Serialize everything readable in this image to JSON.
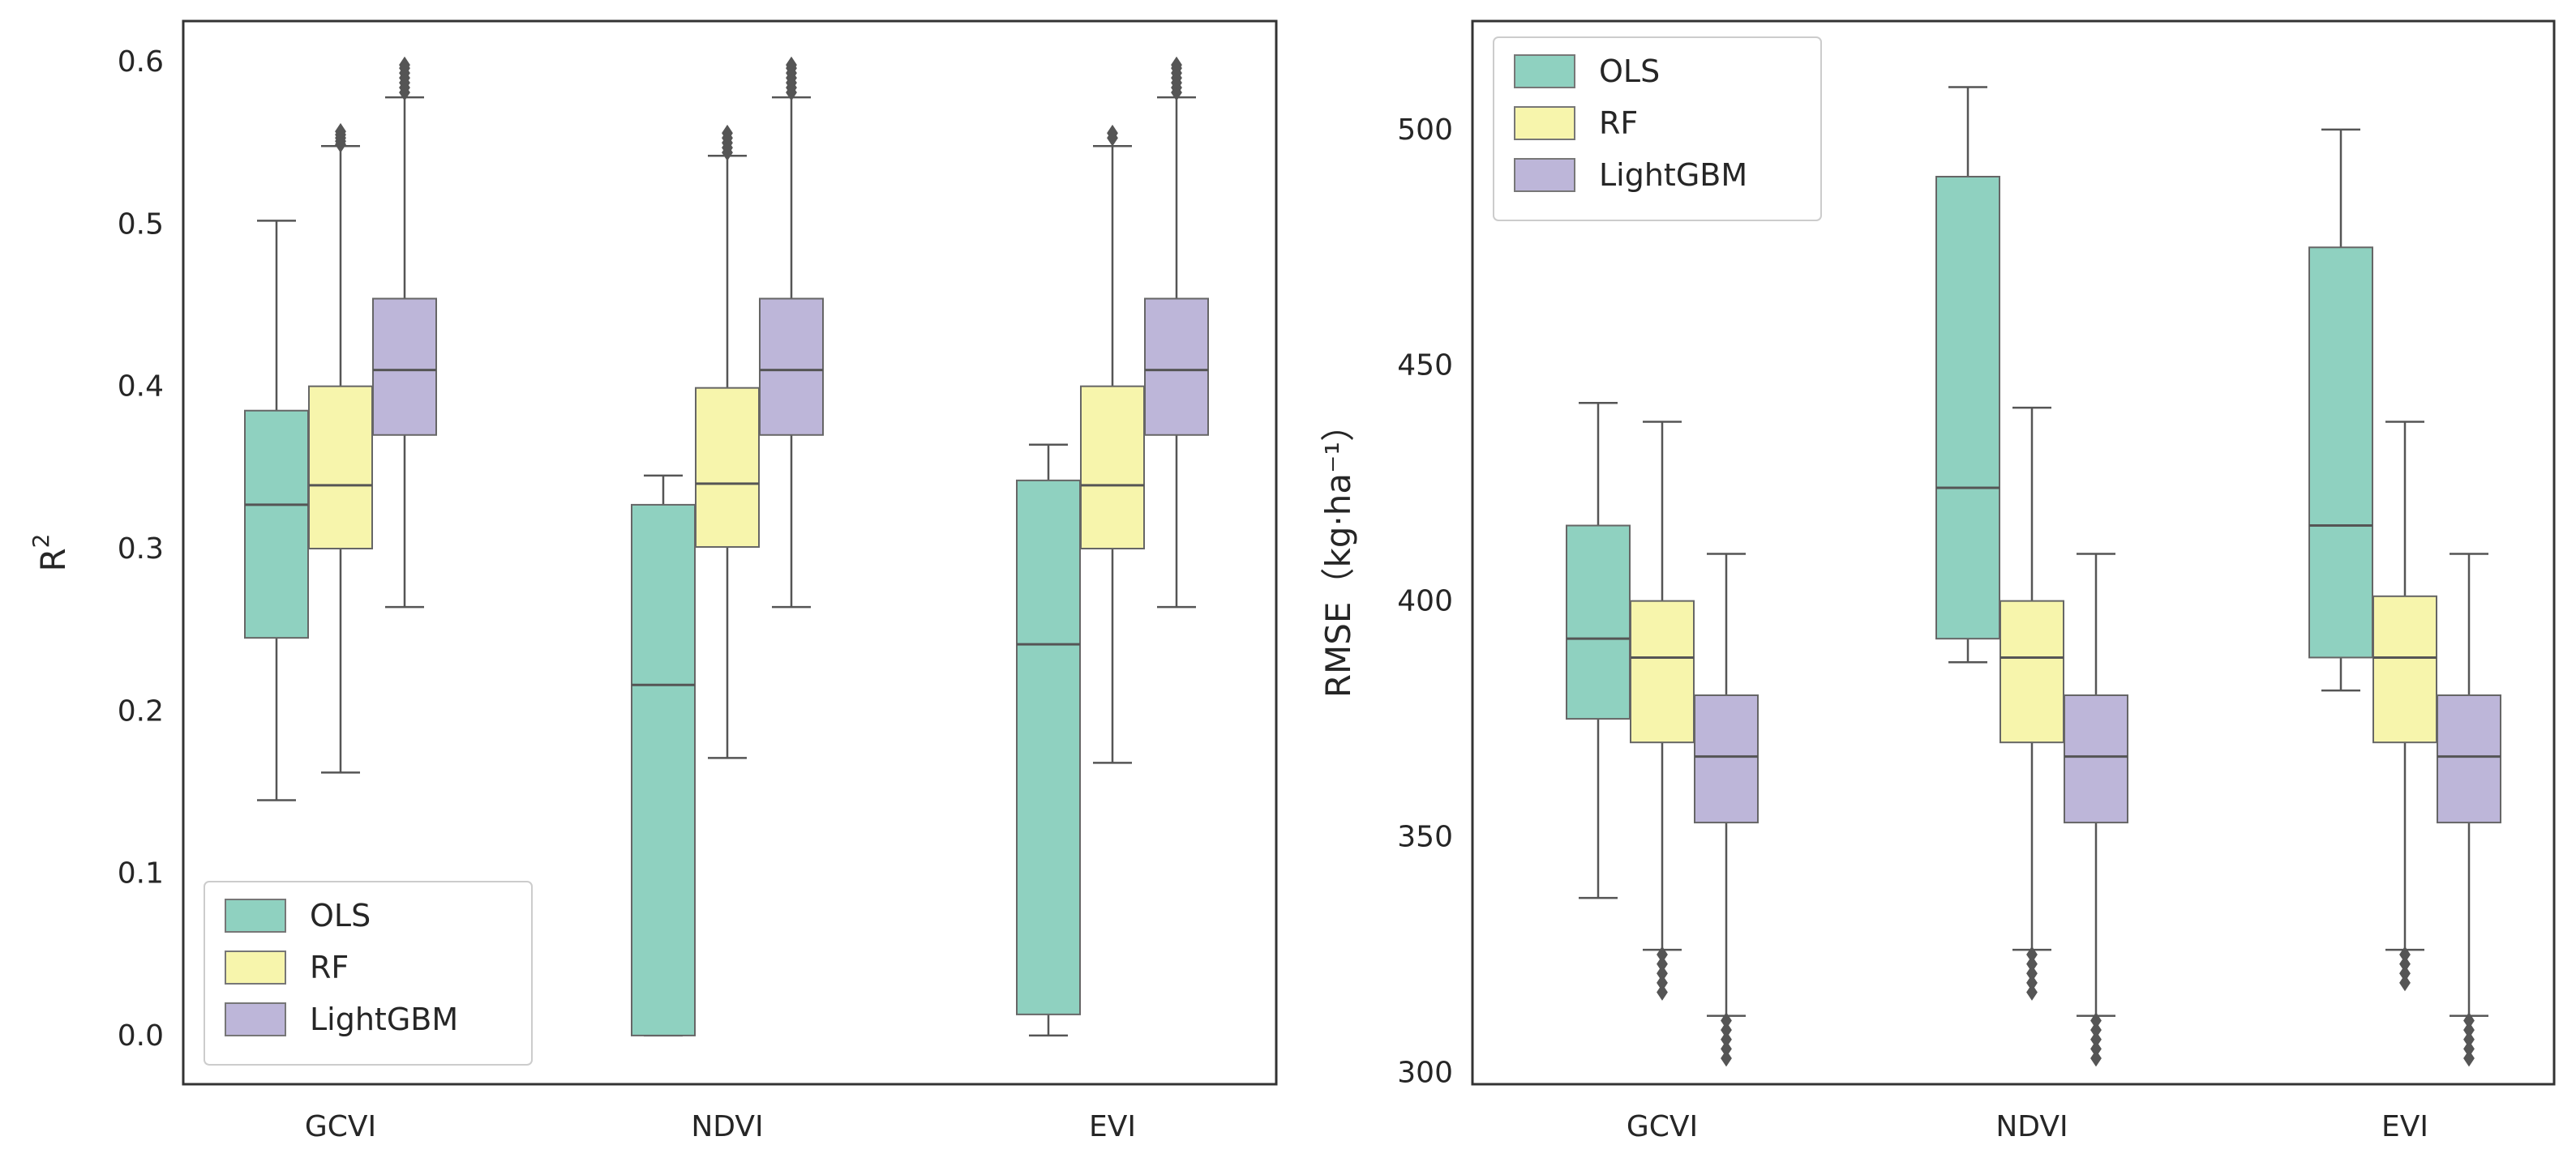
{
  "colors": {
    "OLS": "#8fd1c0",
    "RF": "#f7f5ac",
    "LightGBM": "#bdb6d9"
  },
  "chart_data": [
    {
      "type": "box",
      "title": "",
      "xlabel": "",
      "ylabel": "R",
      "ylabel_sup": "2",
      "categories": [
        "GCVI",
        "NDVI",
        "EVI"
      ],
      "ylim": [
        -0.03,
        0.625
      ],
      "yticks": [
        0.0,
        0.1,
        0.2,
        0.3,
        0.4,
        0.5,
        0.6
      ],
      "ytick_labels": [
        "0.0",
        "0.1",
        "0.2",
        "0.3",
        "0.4",
        "0.5",
        "0.6"
      ],
      "legend_position": "lower-left",
      "series": [
        {
          "name": "OLS",
          "boxes": [
            {
              "whislo": 0.145,
              "q1": 0.245,
              "med": 0.327,
              "q3": 0.385,
              "whishi": 0.502,
              "fliers": []
            },
            {
              "whislo": 0.0,
              "q1": 0.0,
              "med": 0.216,
              "q3": 0.327,
              "whishi": 0.345,
              "fliers": []
            },
            {
              "whislo": 0.0,
              "q1": 0.013,
              "med": 0.241,
              "q3": 0.342,
              "whishi": 0.364,
              "fliers": []
            }
          ]
        },
        {
          "name": "RF",
          "boxes": [
            {
              "whislo": 0.162,
              "q1": 0.3,
              "med": 0.339,
              "q3": 0.4,
              "whishi": 0.548,
              "fliers": [
                0.549,
                0.551,
                0.553,
                0.555,
                0.557
              ]
            },
            {
              "whislo": 0.171,
              "q1": 0.301,
              "med": 0.34,
              "q3": 0.399,
              "whishi": 0.542,
              "fliers": [
                0.544,
                0.547,
                0.55,
                0.553,
                0.556
              ]
            },
            {
              "whislo": 0.168,
              "q1": 0.3,
              "med": 0.339,
              "q3": 0.4,
              "whishi": 0.548,
              "fliers": [
                0.553,
                0.556
              ]
            }
          ]
        },
        {
          "name": "LightGBM",
          "boxes": [
            {
              "whislo": 0.264,
              "q1": 0.37,
              "med": 0.41,
              "q3": 0.454,
              "whishi": 0.578,
              "fliers": [
                0.581,
                0.584,
                0.587,
                0.59,
                0.593,
                0.596,
                0.598
              ]
            },
            {
              "whislo": 0.264,
              "q1": 0.37,
              "med": 0.41,
              "q3": 0.454,
              "whishi": 0.578,
              "fliers": [
                0.581,
                0.584,
                0.587,
                0.59,
                0.593,
                0.596,
                0.598
              ]
            },
            {
              "whislo": 0.264,
              "q1": 0.37,
              "med": 0.41,
              "q3": 0.454,
              "whishi": 0.578,
              "fliers": [
                0.581,
                0.584,
                0.587,
                0.59,
                0.593,
                0.596,
                0.598
              ]
            }
          ]
        }
      ]
    },
    {
      "type": "box",
      "title": "",
      "xlabel": "",
      "ylabel": "RMSE（kg·ha⁻¹）",
      "categories": [
        "GCVI",
        "NDVI",
        "EVI"
      ],
      "ylim": [
        297.5,
        523
      ],
      "yticks": [
        300,
        350,
        400,
        450,
        500
      ],
      "ytick_labels": [
        "300",
        "350",
        "400",
        "450",
        "500"
      ],
      "legend_position": "upper-left",
      "series": [
        {
          "name": "OLS",
          "boxes": [
            {
              "whislo": 337,
              "q1": 375,
              "med": 392,
              "q3": 416,
              "whishi": 442,
              "fliers": []
            },
            {
              "whislo": 387,
              "q1": 392,
              "med": 424,
              "q3": 490,
              "whishi": 509,
              "fliers": []
            },
            {
              "whislo": 381,
              "q1": 388,
              "med": 416,
              "q3": 475,
              "whishi": 500,
              "fliers": []
            }
          ]
        },
        {
          "name": "RF",
          "boxes": [
            {
              "whislo": 326,
              "q1": 370,
              "med": 388,
              "q3": 400,
              "whishi": 438,
              "fliers": [
                325,
                323,
                321,
                319,
                317
              ]
            },
            {
              "whislo": 326,
              "q1": 370,
              "med": 388,
              "q3": 400,
              "whishi": 441,
              "fliers": [
                325,
                323,
                321,
                319,
                317
              ]
            },
            {
              "whislo": 326,
              "q1": 370,
              "med": 388,
              "q3": 401,
              "whishi": 438,
              "fliers": [
                325,
                323,
                321,
                319
              ]
            }
          ]
        },
        {
          "name": "LightGBM",
          "boxes": [
            {
              "whislo": 312,
              "q1": 353,
              "med": 367,
              "q3": 380,
              "whishi": 410,
              "fliers": [
                311,
                309,
                307,
                305,
                303
              ]
            },
            {
              "whislo": 312,
              "q1": 353,
              "med": 367,
              "q3": 380,
              "whishi": 410,
              "fliers": [
                311,
                309,
                307,
                305,
                303
              ]
            },
            {
              "whislo": 312,
              "q1": 353,
              "med": 367,
              "q3": 380,
              "whishi": 410,
              "fliers": [
                311,
                309,
                307,
                305,
                303
              ]
            }
          ]
        }
      ]
    }
  ]
}
